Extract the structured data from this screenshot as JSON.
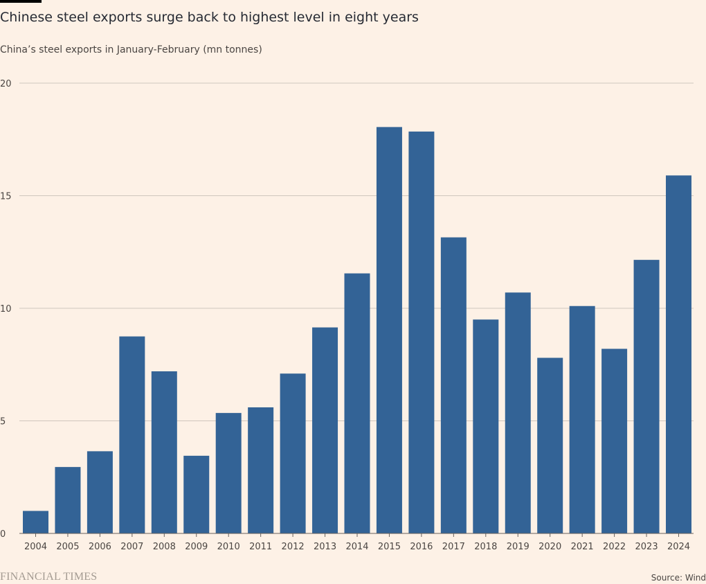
{
  "title": "Chinese steel exports surge back to highest level in eight years",
  "subtitle": "China’s steel exports in January-February (mn tonnes)",
  "source": "Source: Wind",
  "logo": "FINANCIAL TIMES",
  "colors": {
    "bar": "#336396",
    "grid": "#cfc6bd",
    "axis": "#66605c",
    "background": "#fdf1e6"
  },
  "chart_data": {
    "type": "bar",
    "title": "Chinese steel exports surge back to highest level in eight years",
    "subtitle": "China’s steel exports in January-February (mn tonnes)",
    "xlabel": "",
    "ylabel": "",
    "ylim": [
      0,
      20
    ],
    "yticks": [
      0,
      5,
      10,
      15,
      20
    ],
    "grid": true,
    "categories": [
      "2004",
      "2005",
      "2006",
      "2007",
      "2008",
      "2009",
      "2010",
      "2011",
      "2012",
      "2013",
      "2014",
      "2015",
      "2016",
      "2017",
      "2018",
      "2019",
      "2020",
      "2021",
      "2022",
      "2023",
      "2024"
    ],
    "values": [
      1.0,
      2.95,
      3.65,
      8.75,
      7.2,
      3.45,
      5.35,
      5.6,
      7.1,
      9.15,
      11.55,
      18.05,
      17.85,
      13.15,
      9.5,
      10.7,
      7.8,
      10.1,
      8.2,
      12.15,
      15.9
    ]
  }
}
